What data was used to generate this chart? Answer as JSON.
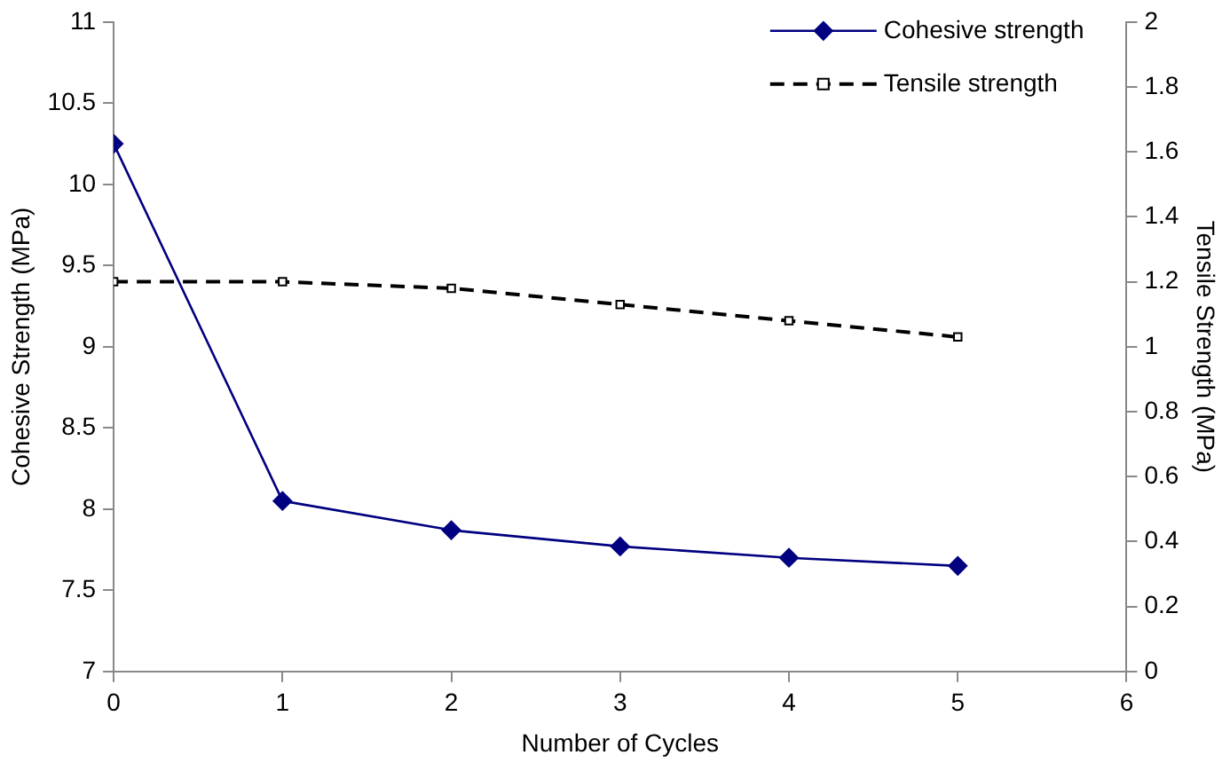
{
  "chart_data": {
    "type": "line",
    "xlabel": "Number of Cycles",
    "ylabel": "Cohesive Strength (MPa)",
    "y2label": "Tensile Strength (MPa)",
    "x": [
      0,
      1,
      2,
      3,
      4,
      5
    ],
    "series": [
      {
        "name": "Cohesive strength",
        "color": "#000080",
        "marker": "diamond",
        "line_style": "solid",
        "values": [
          10.25,
          8.05,
          7.87,
          7.77,
          7.7,
          7.65
        ]
      },
      {
        "name": "Tensile strength",
        "color": "#000000",
        "marker": "square",
        "line_style": "dashed",
        "axis": "y2",
        "values": [
          1.2,
          1.2,
          1.18,
          1.13,
          1.08,
          1.03
        ]
      }
    ],
    "xlim": [
      0,
      6
    ],
    "xticks": [
      0,
      1,
      2,
      3,
      4,
      5,
      6
    ],
    "ylim": [
      7,
      11
    ],
    "yticks": [
      7,
      7.5,
      8,
      8.5,
      9,
      9.5,
      10,
      10.5,
      11
    ],
    "y2lim": [
      0,
      2
    ],
    "y2ticks": [
      0,
      0.2,
      0.4,
      0.6,
      0.8,
      1,
      1.2,
      1.4,
      1.6,
      1.8,
      2
    ],
    "grid": false,
    "legend": "top right"
  }
}
